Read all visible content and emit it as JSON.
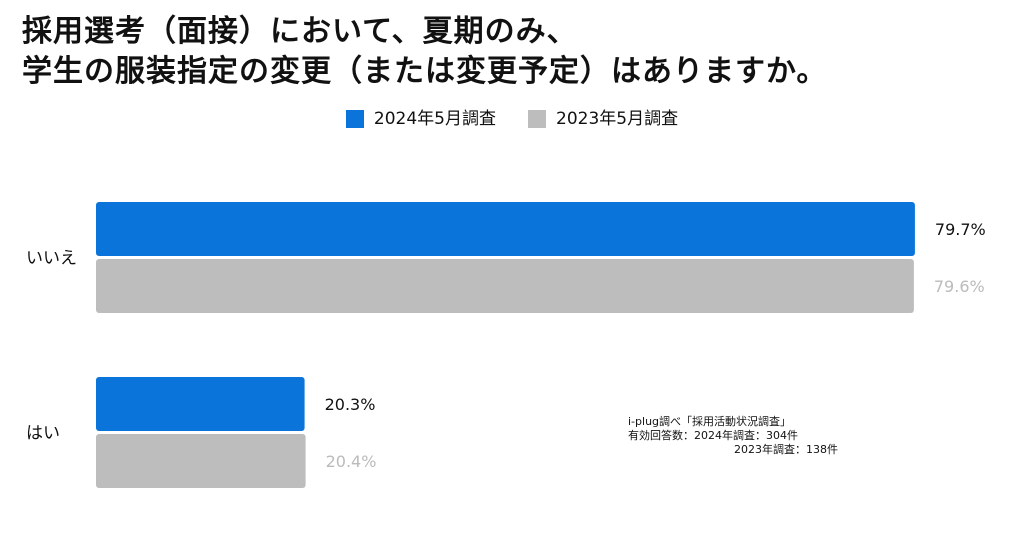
{
  "title": {
    "line1": "採用選考（面接）において、夏期のみ、",
    "line2": "学生の服装指定の変更（または変更予定）はありますか。"
  },
  "legend": [
    {
      "name": "2024年5月調査",
      "color": "#0A74DA"
    },
    {
      "name": "2023年5月調査",
      "color": "#BDBDBD"
    }
  ],
  "chart_data": {
    "type": "bar",
    "orientation": "horizontal",
    "categories": [
      "いいえ",
      "はい"
    ],
    "series": [
      {
        "name": "2024年5月調査",
        "values": [
          79.7,
          20.3
        ],
        "labels": [
          "79.7%",
          "20.3%"
        ],
        "color": "#0A74DA",
        "label_color": "#111111"
      },
      {
        "name": "2023年5月調査",
        "values": [
          79.6,
          20.4
        ],
        "labels": [
          "79.6%",
          "20.4%"
        ],
        "color": "#BDBDBD",
        "label_color": "#BBBBBB"
      }
    ],
    "xlim": [
      0,
      80
    ],
    "grid": false,
    "legend_position": "top"
  },
  "source": {
    "line1": "i-plug調べ「採用活動状況調査」",
    "line2": "有効回答数：2024年調査：304件",
    "line3": "2023年調査：138件"
  }
}
